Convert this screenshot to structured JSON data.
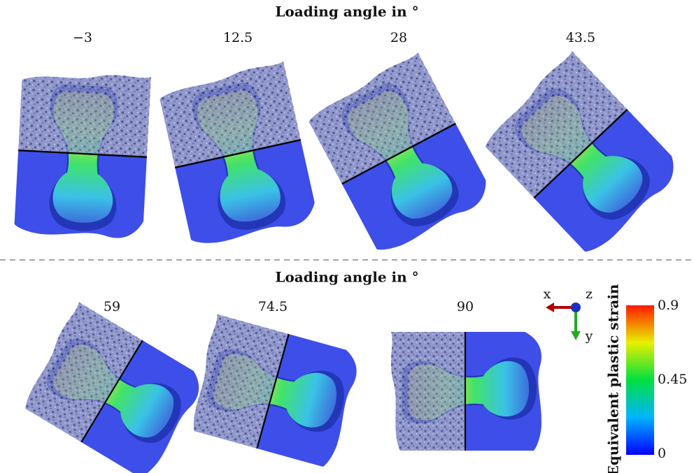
{
  "rows": [
    {
      "title": "Loading angle in °",
      "panels": [
        {
          "angle": "−3"
        },
        {
          "angle": "12.5"
        },
        {
          "angle": "28"
        },
        {
          "angle": "43.5"
        }
      ]
    },
    {
      "title": "Loading angle in °",
      "panels": [
        {
          "angle": "59"
        },
        {
          "angle": "74.5"
        },
        {
          "angle": "90"
        }
      ]
    }
  ],
  "triad": {
    "x": "x",
    "y": "y",
    "z": "z"
  },
  "colorbar": {
    "label": "Equivalent plastic strain",
    "ticks": [
      "0.9",
      "0.45",
      "0"
    ]
  }
}
